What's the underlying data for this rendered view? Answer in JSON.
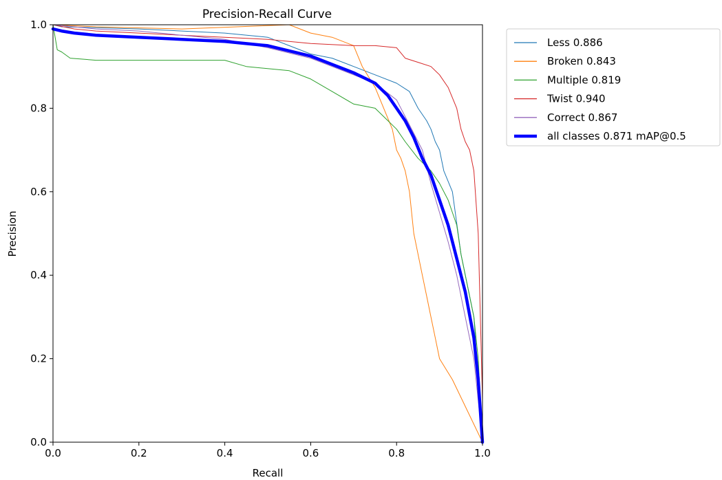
{
  "chart_data": {
    "type": "line",
    "title": "Precision-Recall Curve",
    "xlabel": "Recall",
    "ylabel": "Precision",
    "xlim": [
      0,
      1
    ],
    "ylim": [
      0,
      1
    ],
    "xticks": [
      "0.0",
      "0.2",
      "0.4",
      "0.6",
      "0.8",
      "1.0"
    ],
    "yticks": [
      "0.0",
      "0.2",
      "0.4",
      "0.6",
      "0.8",
      "1.0"
    ],
    "grid": false,
    "legend_position": "outside-upper-right",
    "series": [
      {
        "name": "Less 0.886",
        "color": "#1f77b4",
        "width": 1,
        "points": [
          [
            0,
            1.0
          ],
          [
            0.02,
            0.995
          ],
          [
            0.1,
            0.993
          ],
          [
            0.2,
            0.99
          ],
          [
            0.3,
            0.985
          ],
          [
            0.4,
            0.98
          ],
          [
            0.5,
            0.97
          ],
          [
            0.55,
            0.95
          ],
          [
            0.6,
            0.93
          ],
          [
            0.65,
            0.92
          ],
          [
            0.7,
            0.9
          ],
          [
            0.75,
            0.88
          ],
          [
            0.8,
            0.86
          ],
          [
            0.83,
            0.84
          ],
          [
            0.85,
            0.8
          ],
          [
            0.87,
            0.77
          ],
          [
            0.88,
            0.75
          ],
          [
            0.89,
            0.72
          ],
          [
            0.9,
            0.7
          ],
          [
            0.91,
            0.65
          ],
          [
            0.93,
            0.6
          ],
          [
            0.95,
            0.45
          ],
          [
            0.97,
            0.35
          ],
          [
            0.98,
            0.3
          ],
          [
            0.99,
            0.15
          ],
          [
            1.0,
            0.0
          ]
        ]
      },
      {
        "name": "Broken 0.843",
        "color": "#ff7f0e",
        "width": 1,
        "points": [
          [
            0,
            1.0
          ],
          [
            0.1,
            0.995
          ],
          [
            0.3,
            0.99
          ],
          [
            0.55,
            1.0
          ],
          [
            0.6,
            0.98
          ],
          [
            0.65,
            0.97
          ],
          [
            0.7,
            0.95
          ],
          [
            0.72,
            0.9
          ],
          [
            0.75,
            0.85
          ],
          [
            0.77,
            0.8
          ],
          [
            0.79,
            0.75
          ],
          [
            0.8,
            0.7
          ],
          [
            0.81,
            0.68
          ],
          [
            0.82,
            0.65
          ],
          [
            0.83,
            0.6
          ],
          [
            0.84,
            0.5
          ],
          [
            0.85,
            0.45
          ],
          [
            0.86,
            0.4
          ],
          [
            0.87,
            0.35
          ],
          [
            0.88,
            0.3
          ],
          [
            0.89,
            0.25
          ],
          [
            0.9,
            0.2
          ],
          [
            0.93,
            0.15
          ],
          [
            1.0,
            0.0
          ]
        ]
      },
      {
        "name": "Multiple 0.819",
        "color": "#2ca02c",
        "width": 1,
        "points": [
          [
            0,
            1.0
          ],
          [
            0.01,
            0.94
          ],
          [
            0.02,
            0.935
          ],
          [
            0.04,
            0.92
          ],
          [
            0.1,
            0.915
          ],
          [
            0.2,
            0.915
          ],
          [
            0.3,
            0.915
          ],
          [
            0.4,
            0.915
          ],
          [
            0.45,
            0.9
          ],
          [
            0.55,
            0.89
          ],
          [
            0.6,
            0.87
          ],
          [
            0.65,
            0.84
          ],
          [
            0.7,
            0.81
          ],
          [
            0.75,
            0.8
          ],
          [
            0.78,
            0.77
          ],
          [
            0.8,
            0.75
          ],
          [
            0.82,
            0.72
          ],
          [
            0.85,
            0.68
          ],
          [
            0.88,
            0.65
          ],
          [
            0.9,
            0.62
          ],
          [
            0.92,
            0.58
          ],
          [
            0.94,
            0.52
          ],
          [
            0.95,
            0.45
          ],
          [
            0.97,
            0.35
          ],
          [
            0.98,
            0.3
          ],
          [
            0.99,
            0.2
          ],
          [
            1.0,
            0.0
          ]
        ]
      },
      {
        "name": "Twist 0.940",
        "color": "#d62728",
        "width": 1,
        "points": [
          [
            0,
            1.0
          ],
          [
            0.05,
            0.99
          ],
          [
            0.1,
            0.985
          ],
          [
            0.2,
            0.98
          ],
          [
            0.3,
            0.975
          ],
          [
            0.4,
            0.97
          ],
          [
            0.5,
            0.965
          ],
          [
            0.55,
            0.96
          ],
          [
            0.6,
            0.955
          ],
          [
            0.7,
            0.95
          ],
          [
            0.75,
            0.95
          ],
          [
            0.8,
            0.945
          ],
          [
            0.82,
            0.92
          ],
          [
            0.85,
            0.91
          ],
          [
            0.88,
            0.9
          ],
          [
            0.9,
            0.88
          ],
          [
            0.92,
            0.85
          ],
          [
            0.94,
            0.8
          ],
          [
            0.95,
            0.75
          ],
          [
            0.96,
            0.72
          ],
          [
            0.97,
            0.7
          ],
          [
            0.98,
            0.65
          ],
          [
            0.99,
            0.5
          ],
          [
            1.0,
            0.1
          ],
          [
            1.0,
            0.0
          ]
        ]
      },
      {
        "name": "Correct 0.867",
        "color": "#9467bd",
        "width": 1,
        "points": [
          [
            0,
            1.0
          ],
          [
            0.05,
            0.995
          ],
          [
            0.1,
            0.99
          ],
          [
            0.2,
            0.985
          ],
          [
            0.3,
            0.975
          ],
          [
            0.4,
            0.965
          ],
          [
            0.5,
            0.945
          ],
          [
            0.6,
            0.92
          ],
          [
            0.65,
            0.9
          ],
          [
            0.7,
            0.88
          ],
          [
            0.75,
            0.86
          ],
          [
            0.8,
            0.82
          ],
          [
            0.82,
            0.78
          ],
          [
            0.84,
            0.74
          ],
          [
            0.86,
            0.7
          ],
          [
            0.88,
            0.62
          ],
          [
            0.9,
            0.55
          ],
          [
            0.92,
            0.48
          ],
          [
            0.94,
            0.4
          ],
          [
            0.96,
            0.3
          ],
          [
            0.98,
            0.2
          ],
          [
            0.99,
            0.1
          ],
          [
            1.0,
            0.0
          ]
        ]
      },
      {
        "name": "all classes 0.871 mAP@0.5",
        "color": "#0000ff",
        "width": 4.5,
        "points": [
          [
            0,
            0.99
          ],
          [
            0.02,
            0.985
          ],
          [
            0.05,
            0.98
          ],
          [
            0.1,
            0.975
          ],
          [
            0.2,
            0.97
          ],
          [
            0.3,
            0.965
          ],
          [
            0.4,
            0.96
          ],
          [
            0.5,
            0.95
          ],
          [
            0.6,
            0.925
          ],
          [
            0.65,
            0.905
          ],
          [
            0.7,
            0.885
          ],
          [
            0.75,
            0.86
          ],
          [
            0.78,
            0.83
          ],
          [
            0.8,
            0.8
          ],
          [
            0.82,
            0.77
          ],
          [
            0.84,
            0.73
          ],
          [
            0.86,
            0.68
          ],
          [
            0.88,
            0.64
          ],
          [
            0.9,
            0.58
          ],
          [
            0.92,
            0.52
          ],
          [
            0.94,
            0.44
          ],
          [
            0.96,
            0.36
          ],
          [
            0.98,
            0.25
          ],
          [
            0.99,
            0.15
          ],
          [
            1.0,
            0.0
          ]
        ]
      }
    ]
  }
}
